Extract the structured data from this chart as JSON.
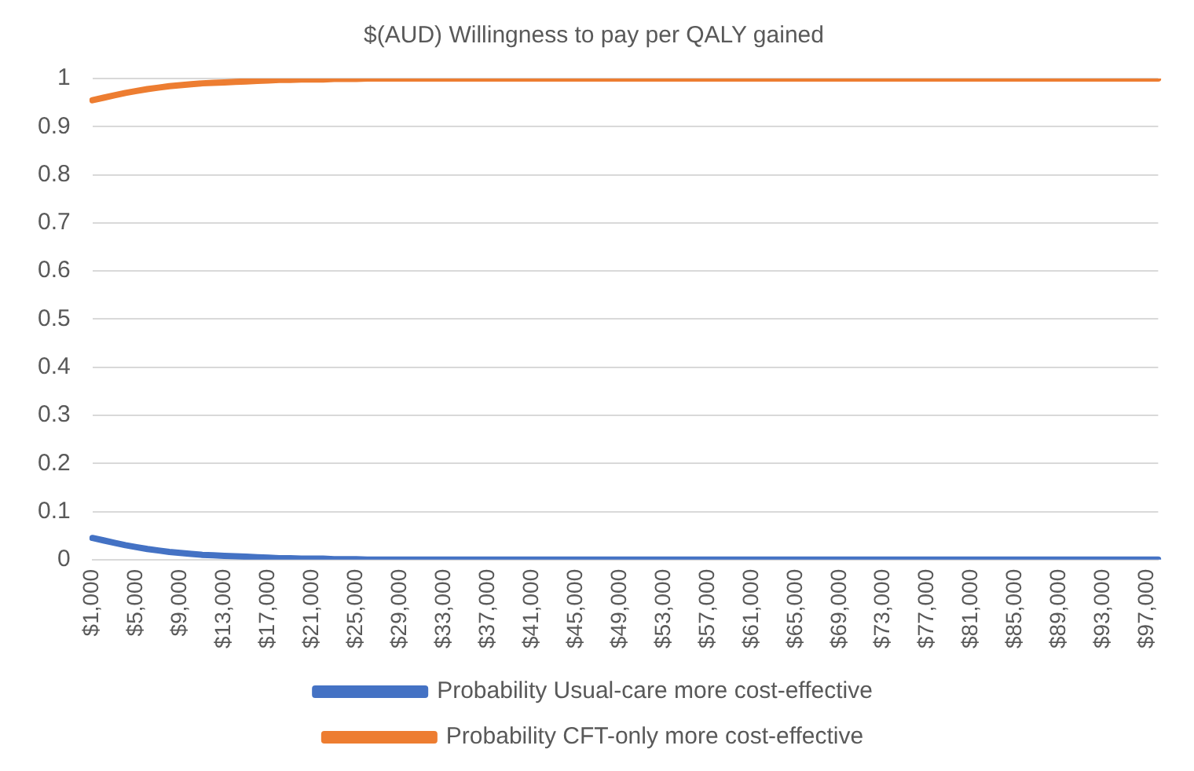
{
  "chart_data": {
    "type": "line",
    "title": "$(AUD) Willingness to pay per QALY gained",
    "categories": [
      "$1,000",
      null,
      null,
      null,
      "$5,000",
      null,
      null,
      null,
      "$9,000",
      null,
      null,
      null,
      "$13,000",
      null,
      null,
      null,
      "$17,000",
      null,
      null,
      null,
      "$21,000",
      null,
      null,
      null,
      "$25,000",
      null,
      null,
      null,
      "$29,000",
      null,
      null,
      null,
      "$33,000",
      null,
      null,
      null,
      "$37,000",
      null,
      null,
      null,
      "$41,000",
      null,
      null,
      null,
      "$45,000",
      null,
      null,
      null,
      "$49,000",
      null,
      null,
      null,
      "$53,000",
      null,
      null,
      null,
      "$57,000",
      null,
      null,
      null,
      "$61,000",
      null,
      null,
      null,
      "$65,000",
      null,
      null,
      null,
      "$69,000",
      null,
      null,
      null,
      "$73,000",
      null,
      null,
      null,
      "$77,000",
      null,
      null,
      null,
      "$81,000",
      null,
      null,
      null,
      "$85,000",
      null,
      null,
      null,
      "$89,000",
      null,
      null,
      null,
      "$93,000",
      null,
      null,
      null,
      "$97,000",
      null
    ],
    "series": [
      {
        "name": "Probability Usual-care more cost-effective",
        "color": "#4472c4",
        "values": [
          0.045,
          0.04,
          0.035,
          0.03,
          0.026,
          0.022,
          0.019,
          0.016,
          0.014,
          0.012,
          0.01,
          0.009,
          0.008,
          0.007,
          0.006,
          0.005,
          0.004,
          0.003,
          0.003,
          0.002,
          0.002,
          0.002,
          0.001,
          0.001,
          0.001,
          0,
          0,
          0,
          0,
          0,
          0,
          0,
          0,
          0,
          0,
          0,
          0,
          0,
          0,
          0,
          0,
          0,
          0,
          0,
          0,
          0,
          0,
          0,
          0,
          0,
          0,
          0,
          0,
          0,
          0,
          0,
          0,
          0,
          0,
          0,
          0,
          0,
          0,
          0,
          0,
          0,
          0,
          0,
          0,
          0,
          0,
          0,
          0,
          0,
          0,
          0,
          0,
          0,
          0,
          0,
          0,
          0,
          0,
          0,
          0,
          0,
          0,
          0,
          0,
          0,
          0,
          0,
          0,
          0,
          0,
          0,
          0,
          0
        ]
      },
      {
        "name": "Probability CFT-only more cost-effective",
        "color": "#ed7d31",
        "values": [
          0.955,
          0.96,
          0.965,
          0.97,
          0.974,
          0.978,
          0.981,
          0.984,
          0.986,
          0.988,
          0.99,
          0.991,
          0.992,
          0.993,
          0.994,
          0.995,
          0.996,
          0.997,
          0.997,
          0.998,
          0.998,
          0.998,
          0.999,
          0.999,
          0.999,
          1,
          1,
          1,
          1,
          1,
          1,
          1,
          1,
          1,
          1,
          1,
          1,
          1,
          1,
          1,
          1,
          1,
          1,
          1,
          1,
          1,
          1,
          1,
          1,
          1,
          1,
          1,
          1,
          1,
          1,
          1,
          1,
          1,
          1,
          1,
          1,
          1,
          1,
          1,
          1,
          1,
          1,
          1,
          1,
          1,
          1,
          1,
          1,
          1,
          1,
          1,
          1,
          1,
          1,
          1,
          1,
          1,
          1,
          1,
          1,
          1,
          1,
          1,
          1,
          1,
          1,
          1,
          1,
          1,
          1,
          1,
          1,
          1
        ]
      }
    ],
    "ylim": [
      0,
      1
    ],
    "yticks": [
      0,
      0.1,
      0.2,
      0.3,
      0.4,
      0.5,
      0.6,
      0.7,
      0.8,
      0.9,
      1
    ],
    "grid": "y",
    "legend": "bottom",
    "marker": "none",
    "line_style": "solid"
  }
}
